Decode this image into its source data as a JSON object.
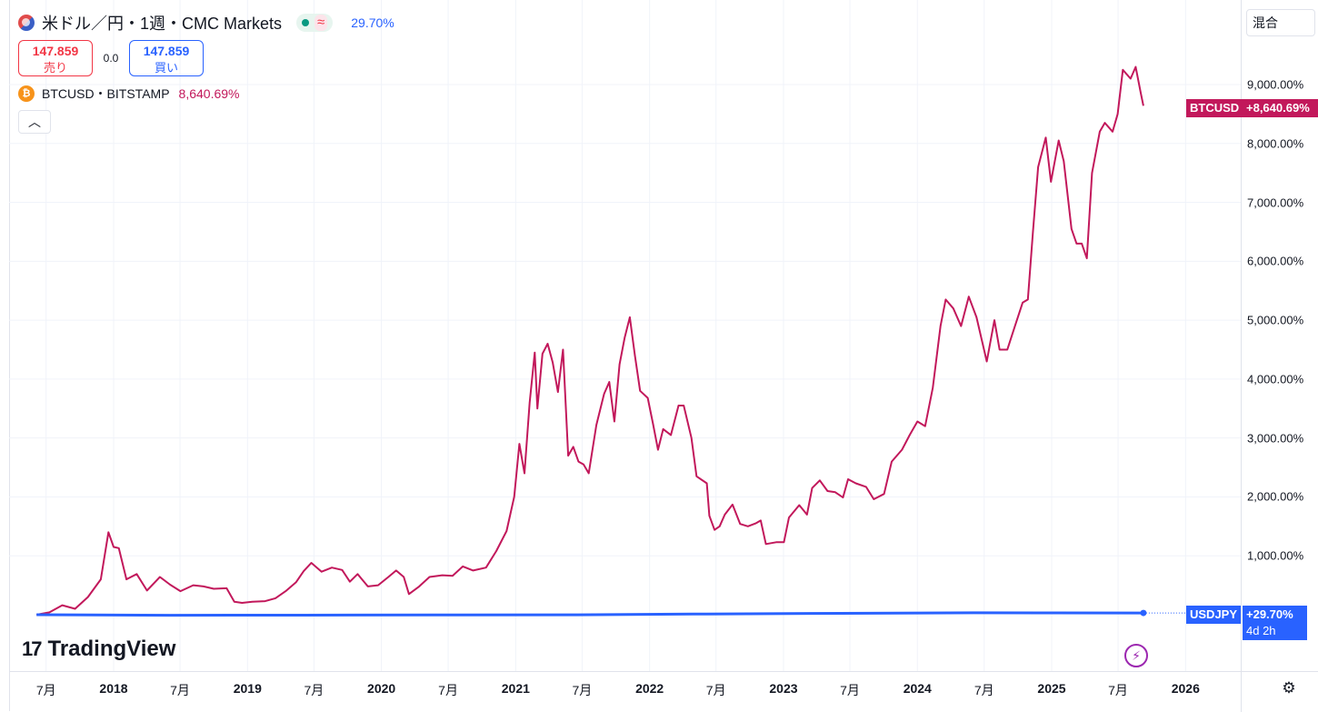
{
  "header": {
    "symbol_title": "米ドル／円・1週・CMC Markets",
    "change_percent": "29.70%",
    "approx_symbol": "≈",
    "sell_price": "147.859",
    "sell_label": "売り",
    "spread": "0.0",
    "buy_price": "147.859",
    "buy_label": "買い",
    "compare_symbol": "BTCUSD・BITSTAMP",
    "compare_percent": "8,640.69%",
    "collapse_icon": "chevron-up-icon"
  },
  "toolbar": {
    "mode_label": "混合",
    "gear_icon": "gear-icon"
  },
  "tags": {
    "btc_name": "BTCUSD",
    "btc_value": "+8,640.69%",
    "usd_name": "USDJPY",
    "usd_value": "+29.70%",
    "usd_countdown": "4d 2h"
  },
  "branding": {
    "logo_mark": "17",
    "logo_text": "TradingView"
  },
  "colors": {
    "btc_line": "#c2185b",
    "usd_line": "#2962ff",
    "grid": "#f0f3fa",
    "status_green": "#089981",
    "sell": "#f23645",
    "buy": "#2962ff"
  },
  "chart_data": {
    "type": "line",
    "ylim": [
      -500,
      9900
    ],
    "y_scale": "percent",
    "y_ticks": [
      1000,
      2000,
      3000,
      4000,
      5000,
      6000,
      7000,
      8000,
      9000
    ],
    "y_tick_labels": [
      "1,000.00%",
      "2,000.00%",
      "3,000.00%",
      "4,000.00%",
      "5,000.00%",
      "6,000.00%",
      "7,000.00%",
      "8,000.00%",
      "9,000.00%"
    ],
    "x_range": [
      "2017-06-05",
      "2026-03-01"
    ],
    "x_ticks": [
      {
        "date": "2017-07-01",
        "label": "7月",
        "year": false
      },
      {
        "date": "2018-01-01",
        "label": "2018",
        "year": true
      },
      {
        "date": "2018-07-01",
        "label": "7月",
        "year": false
      },
      {
        "date": "2019-01-01",
        "label": "2019",
        "year": true
      },
      {
        "date": "2019-07-01",
        "label": "7月",
        "year": false
      },
      {
        "date": "2020-01-01",
        "label": "2020",
        "year": true
      },
      {
        "date": "2020-07-01",
        "label": "7月",
        "year": false
      },
      {
        "date": "2021-01-01",
        "label": "2021",
        "year": true
      },
      {
        "date": "2021-07-01",
        "label": "7月",
        "year": false
      },
      {
        "date": "2022-01-01",
        "label": "2022",
        "year": true
      },
      {
        "date": "2022-07-01",
        "label": "7月",
        "year": false
      },
      {
        "date": "2023-01-01",
        "label": "2023",
        "year": true
      },
      {
        "date": "2023-07-01",
        "label": "7月",
        "year": false
      },
      {
        "date": "2024-01-01",
        "label": "2024",
        "year": true
      },
      {
        "date": "2024-07-01",
        "label": "7月",
        "year": false
      },
      {
        "date": "2025-01-01",
        "label": "2025",
        "year": true
      },
      {
        "date": "2025-07-01",
        "label": "7月",
        "year": false
      },
      {
        "date": "2026-01-01",
        "label": "2026",
        "year": true
      }
    ],
    "grid": true,
    "series": [
      {
        "name": "BTCUSD",
        "points": [
          [
            "2017-06-05",
            0
          ],
          [
            "2017-07-10",
            40
          ],
          [
            "2017-08-14",
            160
          ],
          [
            "2017-09-18",
            100
          ],
          [
            "2017-10-23",
            300
          ],
          [
            "2017-11-27",
            600
          ],
          [
            "2017-12-18",
            1400
          ],
          [
            "2018-01-01",
            1150
          ],
          [
            "2018-01-15",
            1130
          ],
          [
            "2018-02-05",
            600
          ],
          [
            "2018-03-05",
            690
          ],
          [
            "2018-04-02",
            410
          ],
          [
            "2018-05-07",
            640
          ],
          [
            "2018-06-04",
            510
          ],
          [
            "2018-07-02",
            400
          ],
          [
            "2018-08-06",
            500
          ],
          [
            "2018-09-03",
            480
          ],
          [
            "2018-10-01",
            440
          ],
          [
            "2018-11-05",
            450
          ],
          [
            "2018-11-26",
            220
          ],
          [
            "2018-12-17",
            200
          ],
          [
            "2019-01-14",
            220
          ],
          [
            "2019-02-18",
            230
          ],
          [
            "2019-03-18",
            280
          ],
          [
            "2019-04-15",
            400
          ],
          [
            "2019-05-13",
            550
          ],
          [
            "2019-06-03",
            740
          ],
          [
            "2019-06-24",
            880
          ],
          [
            "2019-07-22",
            730
          ],
          [
            "2019-08-19",
            800
          ],
          [
            "2019-09-16",
            760
          ],
          [
            "2019-10-07",
            560
          ],
          [
            "2019-10-28",
            690
          ],
          [
            "2019-11-25",
            480
          ],
          [
            "2019-12-23",
            500
          ],
          [
            "2020-01-20",
            640
          ],
          [
            "2020-02-10",
            750
          ],
          [
            "2020-03-02",
            640
          ],
          [
            "2020-03-16",
            350
          ],
          [
            "2020-04-13",
            480
          ],
          [
            "2020-05-11",
            640
          ],
          [
            "2020-06-15",
            670
          ],
          [
            "2020-07-13",
            660
          ],
          [
            "2020-08-10",
            820
          ],
          [
            "2020-09-07",
            750
          ],
          [
            "2020-10-12",
            800
          ],
          [
            "2020-11-09",
            1080
          ],
          [
            "2020-12-07",
            1420
          ],
          [
            "2020-12-28",
            2000
          ],
          [
            "2021-01-11",
            2900
          ],
          [
            "2021-01-25",
            2400
          ],
          [
            "2021-02-08",
            3600
          ],
          [
            "2021-02-22",
            4450
          ],
          [
            "2021-03-01",
            3500
          ],
          [
            "2021-03-15",
            4430
          ],
          [
            "2021-03-29",
            4600
          ],
          [
            "2021-04-12",
            4280
          ],
          [
            "2021-04-26",
            3780
          ],
          [
            "2021-05-10",
            4500
          ],
          [
            "2021-05-24",
            2700
          ],
          [
            "2021-06-07",
            2850
          ],
          [
            "2021-06-21",
            2600
          ],
          [
            "2021-07-05",
            2550
          ],
          [
            "2021-07-19",
            2400
          ],
          [
            "2021-08-09",
            3220
          ],
          [
            "2021-08-30",
            3750
          ],
          [
            "2021-09-13",
            3950
          ],
          [
            "2021-09-27",
            3280
          ],
          [
            "2021-10-11",
            4250
          ],
          [
            "2021-10-25",
            4700
          ],
          [
            "2021-11-08",
            5050
          ],
          [
            "2021-11-22",
            4400
          ],
          [
            "2021-12-06",
            3800
          ],
          [
            "2021-12-27",
            3680
          ],
          [
            "2022-01-10",
            3250
          ],
          [
            "2022-01-24",
            2800
          ],
          [
            "2022-02-07",
            3150
          ],
          [
            "2022-02-28",
            3050
          ],
          [
            "2022-03-21",
            3550
          ],
          [
            "2022-04-04",
            3550
          ],
          [
            "2022-04-25",
            3000
          ],
          [
            "2022-05-09",
            2350
          ],
          [
            "2022-06-06",
            2230
          ],
          [
            "2022-06-13",
            1680
          ],
          [
            "2022-06-27",
            1440
          ],
          [
            "2022-07-11",
            1500
          ],
          [
            "2022-07-25",
            1700
          ],
          [
            "2022-08-15",
            1870
          ],
          [
            "2022-09-05",
            1540
          ],
          [
            "2022-09-26",
            1500
          ],
          [
            "2022-10-17",
            1550
          ],
          [
            "2022-10-31",
            1600
          ],
          [
            "2022-11-14",
            1200
          ],
          [
            "2022-12-12",
            1230
          ],
          [
            "2023-01-02",
            1230
          ],
          [
            "2023-01-16",
            1650
          ],
          [
            "2023-02-13",
            1860
          ],
          [
            "2023-03-06",
            1700
          ],
          [
            "2023-03-20",
            2150
          ],
          [
            "2023-04-10",
            2280
          ],
          [
            "2023-05-01",
            2100
          ],
          [
            "2023-05-22",
            2080
          ],
          [
            "2023-06-12",
            1990
          ],
          [
            "2023-06-26",
            2300
          ],
          [
            "2023-07-17",
            2230
          ],
          [
            "2023-08-14",
            2170
          ],
          [
            "2023-09-04",
            1960
          ],
          [
            "2023-10-02",
            2050
          ],
          [
            "2023-10-23",
            2600
          ],
          [
            "2023-11-20",
            2800
          ],
          [
            "2023-12-11",
            3050
          ],
          [
            "2024-01-01",
            3280
          ],
          [
            "2024-01-22",
            3200
          ],
          [
            "2024-02-12",
            3850
          ],
          [
            "2024-03-04",
            4900
          ],
          [
            "2024-03-18",
            5350
          ],
          [
            "2024-04-08",
            5200
          ],
          [
            "2024-04-29",
            4900
          ],
          [
            "2024-05-20",
            5400
          ],
          [
            "2024-06-10",
            5050
          ],
          [
            "2024-07-08",
            4300
          ],
          [
            "2024-07-29",
            5000
          ],
          [
            "2024-08-12",
            4500
          ],
          [
            "2024-09-02",
            4500
          ],
          [
            "2024-09-23",
            4900
          ],
          [
            "2024-10-14",
            5300
          ],
          [
            "2024-10-28",
            5350
          ],
          [
            "2024-11-11",
            6500
          ],
          [
            "2024-11-25",
            7600
          ],
          [
            "2024-12-16",
            8100
          ],
          [
            "2024-12-30",
            7350
          ],
          [
            "2025-01-20",
            8050
          ],
          [
            "2025-02-03",
            7700
          ],
          [
            "2025-02-24",
            6550
          ],
          [
            "2025-03-10",
            6300
          ],
          [
            "2025-03-24",
            6300
          ],
          [
            "2025-04-07",
            6050
          ],
          [
            "2025-04-21",
            7500
          ],
          [
            "2025-05-12",
            8200
          ],
          [
            "2025-05-26",
            8350
          ],
          [
            "2025-06-16",
            8200
          ],
          [
            "2025-06-30",
            8500
          ],
          [
            "2025-07-14",
            9250
          ],
          [
            "2025-08-04",
            9100
          ],
          [
            "2025-08-18",
            9300
          ],
          [
            "2025-09-01",
            8850
          ],
          [
            "2025-09-08",
            8640.69
          ]
        ]
      },
      {
        "name": "USDJPY",
        "points": [
          [
            "2017-06-05",
            0
          ],
          [
            "2018-06-04",
            -10
          ],
          [
            "2019-06-03",
            -8
          ],
          [
            "2020-06-01",
            -5
          ],
          [
            "2021-06-07",
            -2
          ],
          [
            "2022-06-06",
            12
          ],
          [
            "2023-06-05",
            23
          ],
          [
            "2024-06-03",
            33
          ],
          [
            "2025-01-06",
            31
          ],
          [
            "2025-09-08",
            29.7
          ]
        ]
      }
    ]
  }
}
